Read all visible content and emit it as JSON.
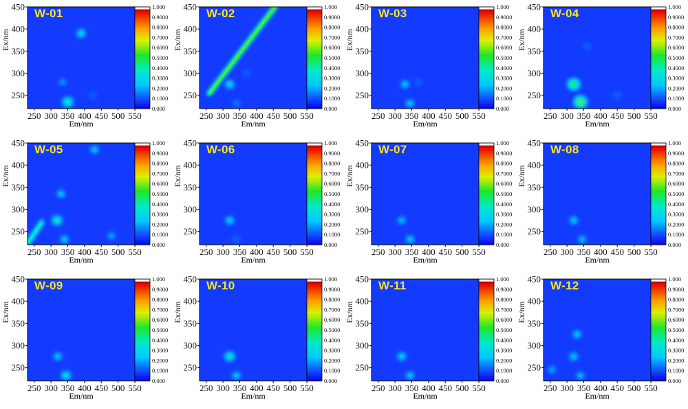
{
  "axes": {
    "xlabel": "Em/nm",
    "ylabel": "Ex/nm",
    "xlim": [
      230,
      550
    ],
    "ylim": [
      220,
      450
    ],
    "xticks": [
      "250",
      "300",
      "350",
      "400",
      "450",
      "500",
      "550"
    ],
    "yticks": [
      "250",
      "300",
      "350",
      "400",
      "450"
    ]
  },
  "colorbar": {
    "range": [
      0,
      1
    ],
    "tick_labels": [
      "0.000",
      "0.1000",
      "0.2000",
      "0.3000",
      "0.4000",
      "0.5000",
      "0.6000",
      "0.7000",
      "0.8000",
      "0.9000",
      "1.000"
    ]
  },
  "chart_data": [
    {
      "type": "heatmap",
      "title": "W-01",
      "features": [
        {
          "em": 350,
          "ex": 235,
          "intensity": 0.45
        },
        {
          "em": 335,
          "ex": 280,
          "intensity": 0.22
        },
        {
          "em": 425,
          "ex": 250,
          "intensity": 0.12
        },
        {
          "em": 390,
          "ex": 390,
          "intensity": 0.35
        }
      ]
    },
    {
      "type": "heatmap",
      "title": "W-02",
      "features": [
        {
          "em": 320,
          "ex": 275,
          "intensity": 0.35
        },
        {
          "em": 340,
          "ex": 232,
          "intensity": 0.18
        },
        {
          "em": 370,
          "ex": 300,
          "intensity": 0.12
        }
      ],
      "diagonal": {
        "em_start": 260,
        "ex_start": 255,
        "em_end": 455,
        "ex_end": 450,
        "intensity": 0.6
      }
    },
    {
      "type": "heatmap",
      "title": "W-03",
      "features": [
        {
          "em": 345,
          "ex": 232,
          "intensity": 0.3
        },
        {
          "em": 330,
          "ex": 275,
          "intensity": 0.3
        },
        {
          "em": 370,
          "ex": 280,
          "intensity": 0.12
        }
      ]
    },
    {
      "type": "heatmap",
      "title": "W-04",
      "features": [
        {
          "em": 320,
          "ex": 275,
          "intensity": 0.55
        },
        {
          "em": 340,
          "ex": 235,
          "intensity": 0.6
        },
        {
          "em": 450,
          "ex": 250,
          "intensity": 0.15
        },
        {
          "em": 360,
          "ex": 360,
          "intensity": 0.12
        }
      ]
    },
    {
      "type": "heatmap",
      "title": "W-05",
      "features": [
        {
          "em": 318,
          "ex": 275,
          "intensity": 0.42
        },
        {
          "em": 340,
          "ex": 232,
          "intensity": 0.3
        },
        {
          "em": 330,
          "ex": 335,
          "intensity": 0.3
        },
        {
          "em": 430,
          "ex": 435,
          "intensity": 0.3
        },
        {
          "em": 480,
          "ex": 240,
          "intensity": 0.25
        }
      ],
      "diagonal": {
        "em_start": 232,
        "ex_start": 225,
        "em_end": 272,
        "ex_end": 270,
        "intensity": 0.4
      }
    },
    {
      "type": "heatmap",
      "title": "W-06",
      "features": [
        {
          "em": 320,
          "ex": 275,
          "intensity": 0.32
        },
        {
          "em": 340,
          "ex": 232,
          "intensity": 0.15
        }
      ]
    },
    {
      "type": "heatmap",
      "title": "W-07",
      "features": [
        {
          "em": 320,
          "ex": 275,
          "intensity": 0.28
        },
        {
          "em": 345,
          "ex": 232,
          "intensity": 0.3
        }
      ]
    },
    {
      "type": "heatmap",
      "title": "W-08",
      "features": [
        {
          "em": 320,
          "ex": 275,
          "intensity": 0.3
        },
        {
          "em": 345,
          "ex": 232,
          "intensity": 0.28
        }
      ]
    },
    {
      "type": "heatmap",
      "title": "W-09",
      "features": [
        {
          "em": 320,
          "ex": 275,
          "intensity": 0.3
        },
        {
          "em": 345,
          "ex": 232,
          "intensity": 0.38
        }
      ]
    },
    {
      "type": "heatmap",
      "title": "W-10",
      "features": [
        {
          "em": 320,
          "ex": 275,
          "intensity": 0.42
        },
        {
          "em": 340,
          "ex": 232,
          "intensity": 0.3
        }
      ]
    },
    {
      "type": "heatmap",
      "title": "W-11",
      "features": [
        {
          "em": 320,
          "ex": 275,
          "intensity": 0.32
        },
        {
          "em": 345,
          "ex": 232,
          "intensity": 0.3
        }
      ]
    },
    {
      "type": "heatmap",
      "title": "W-12",
      "features": [
        {
          "em": 320,
          "ex": 275,
          "intensity": 0.3
        },
        {
          "em": 340,
          "ex": 232,
          "intensity": 0.28
        },
        {
          "em": 330,
          "ex": 325,
          "intensity": 0.3
        },
        {
          "em": 255,
          "ex": 245,
          "intensity": 0.25
        }
      ]
    }
  ]
}
